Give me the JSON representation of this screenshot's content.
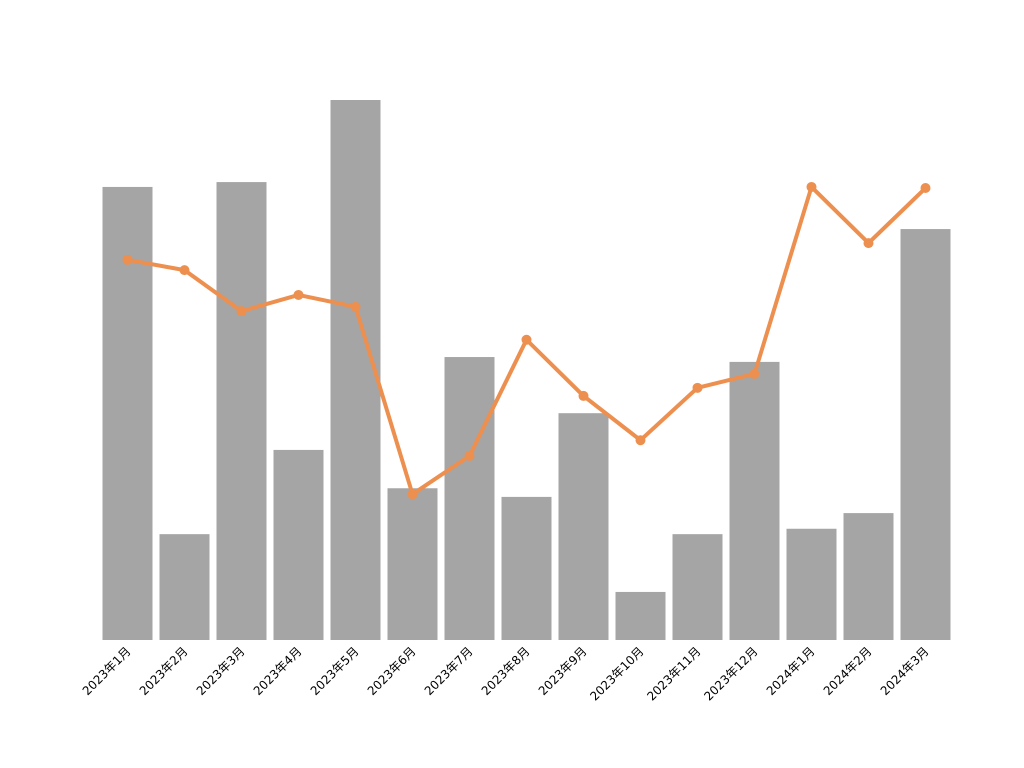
{
  "chart_data": {
    "type": "bar",
    "categories": [
      "2023年1月",
      "2023年2月",
      "2023年3月",
      "2023年4月",
      "2023年5月",
      "2023年6月",
      "2023年7月",
      "2023年8月",
      "2023年9月",
      "2023年10月",
      "2023年11月",
      "2023年12月",
      "2024年1月",
      "2024年2月",
      "2024年3月"
    ],
    "series": [
      {
        "type": "bar",
        "color": "#a5a5a5",
        "values": [
          83.9,
          19.6,
          84.8,
          35.2,
          100,
          28.1,
          52.4,
          26.5,
          42.0,
          8.9,
          19.6,
          51.5,
          20.6,
          23.5,
          76.1
        ]
      },
      {
        "type": "line",
        "color": "#ed8f4e",
        "values": [
          70.4,
          68.5,
          60.9,
          63.9,
          61.7,
          27.0,
          34.1,
          55.6,
          45.2,
          37.0,
          46.7,
          49.3,
          83.9,
          73.5,
          83.7
        ]
      }
    ],
    "ylim": [
      0,
      100
    ]
  }
}
